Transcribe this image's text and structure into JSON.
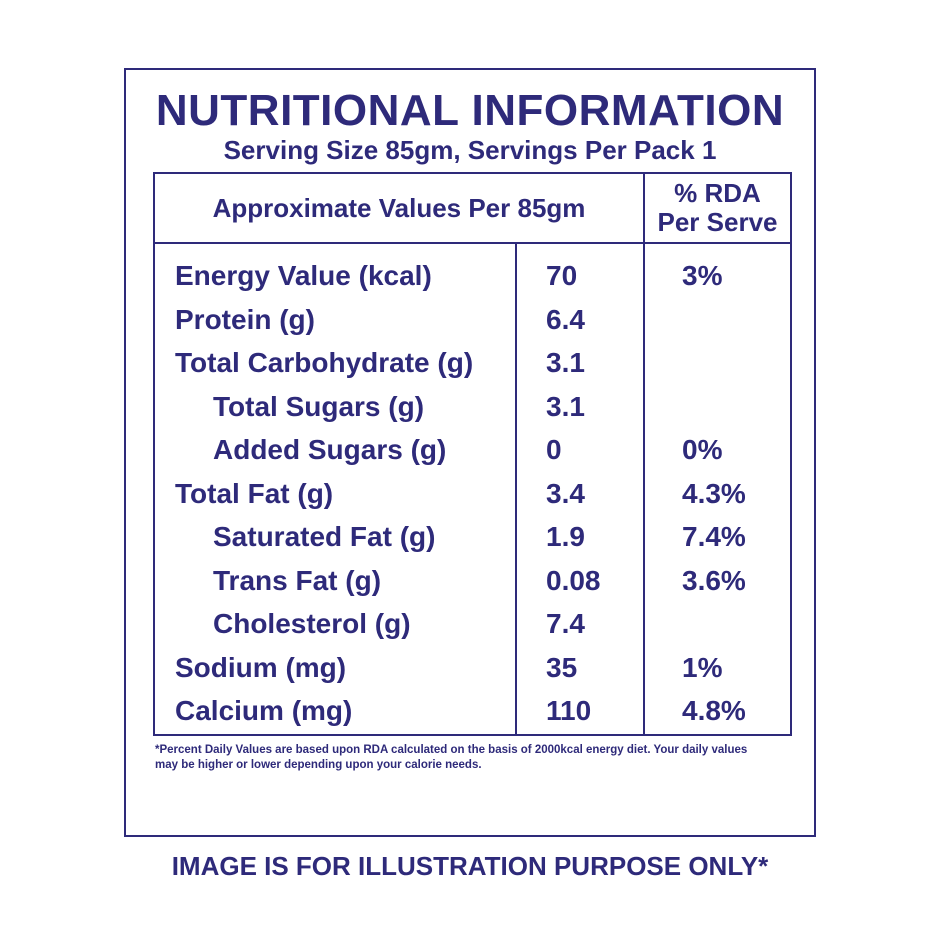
{
  "title": "NUTRITIONAL INFORMATION",
  "subtitle": "Serving Size 85gm, Servings Per Pack 1",
  "table": {
    "header_values": "Approximate Values Per 85gm",
    "header_rda_line1": "% RDA",
    "header_rda_line2": "Per Serve",
    "rows": [
      {
        "name": "Energy Value (kcal)",
        "value": "70",
        "rda": "3%"
      },
      {
        "name": "Protein (g)",
        "value": "6.4",
        "rda": ""
      },
      {
        "name": "Total Carbohydrate (g)",
        "value": "3.1",
        "rda": ""
      },
      {
        "name": "Total Sugars (g)",
        "value": "3.1",
        "rda": ""
      },
      {
        "name": "Added Sugars (g)",
        "value": "0",
        "rda": "0%"
      },
      {
        "name": "Total Fat (g)",
        "value": "3.4",
        "rda": "4.3%"
      },
      {
        "name": "Saturated Fat (g)",
        "value": "1.9",
        "rda": "7.4%"
      },
      {
        "name": "Trans Fat (g)",
        "value": "0.08",
        "rda": "3.6%"
      },
      {
        "name": "Cholesterol (g)",
        "value": "7.4",
        "rda": ""
      },
      {
        "name": "Sodium (mg)",
        "value": "35",
        "rda": "1%"
      },
      {
        "name": "Calcium (mg)",
        "value": "110",
        "rda": "4.8%"
      }
    ]
  },
  "footnote_line1": "*Percent Daily Values are based upon RDA calculated on the basis of 2000kcal energy diet. Your daily values",
  "footnote_line2": "may be higher or lower depending upon your calorie needs.",
  "disclaimer": "IMAGE IS FOR ILLUSTRATION PURPOSE ONLY*",
  "colors": {
    "ink": "#2e2a7a",
    "background": "#ffffff"
  }
}
